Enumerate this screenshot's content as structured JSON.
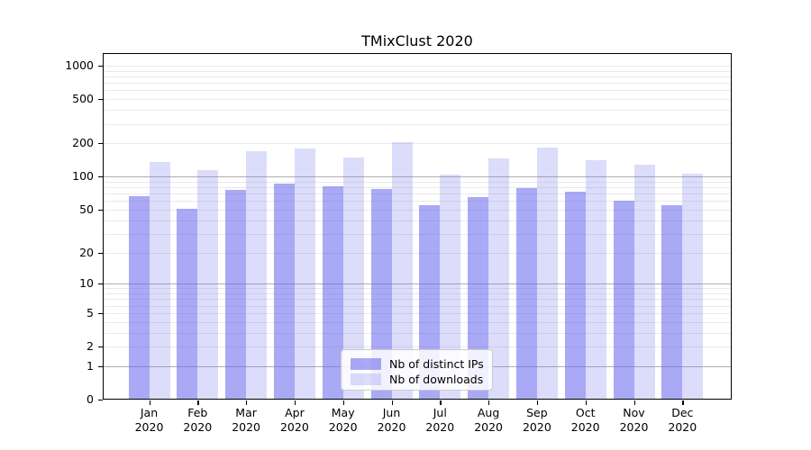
{
  "title": "TMixClust 2020",
  "colors": {
    "bar_ips": "rgba(102,102,238,0.56)",
    "bar_downloads": "rgba(102,102,238,0.23)",
    "grid_major": "#b0b0b0",
    "grid_minor": "#e9e9e9",
    "spine": "#000000",
    "text": "#000000",
    "legend_border": "#cccccc",
    "legend_bg": "rgba(255,255,255,0.85)"
  },
  "chart_data": {
    "type": "bar",
    "title": "TMixClust 2020",
    "categories": [
      "Jan",
      "Feb",
      "Mar",
      "Apr",
      "May",
      "Jun",
      "Jul",
      "Aug",
      "Sep",
      "Oct",
      "Nov",
      "Dec"
    ],
    "category_year": "2020",
    "series": [
      {
        "name": "Nb of distinct IPs",
        "color_key": "bar_ips",
        "values": [
          66,
          51,
          75,
          87,
          81,
          77,
          55,
          65,
          79,
          73,
          60,
          55
        ]
      },
      {
        "name": "Nb of downloads",
        "color_key": "bar_downloads",
        "values": [
          135,
          115,
          170,
          181,
          148,
          206,
          105,
          145,
          184,
          142,
          128,
          106
        ]
      }
    ],
    "yscale": "log1p",
    "ylim": [
      0,
      1100
    ],
    "yticks": [
      1000,
      500,
      200,
      100,
      50,
      20,
      10,
      5,
      2,
      1,
      0
    ],
    "grid": true,
    "grid_major_values": [
      100,
      10,
      1
    ],
    "grid_minor_values": [
      1000,
      900,
      800,
      700,
      600,
      500,
      400,
      300,
      200,
      90,
      80,
      70,
      60,
      50,
      40,
      30,
      20,
      9,
      8,
      7,
      6,
      5,
      4,
      3,
      2
    ],
    "legend_position": "lower center",
    "xlabel": "",
    "ylabel": ""
  }
}
